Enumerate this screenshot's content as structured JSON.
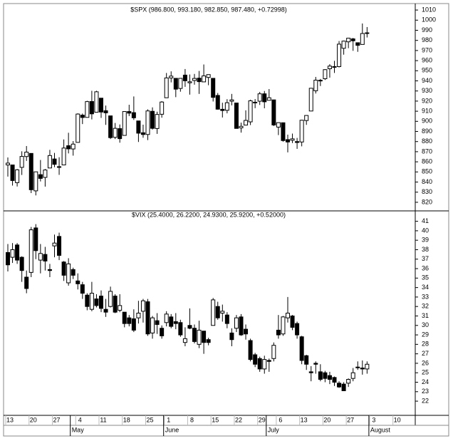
{
  "chart_data": [
    {
      "type": "candlestick",
      "title": "$SPX (986.800, 993.180, 982.850, 987.480, +0.72998)",
      "up_color": "#ffffff",
      "down_color": "#000000",
      "open": [
        856.9,
        856.9,
        839.4,
        854.5,
        865.2,
        868.3,
        831.3,
        847.3,
        844.6,
        853.9,
        862.8,
        854.5,
        856.9,
        875.9,
        872.7,
        879.2,
        906.1,
        903.9,
        919.6,
        909.0,
        922.9,
        910.5,
        905.4,
        884.2,
        892.8,
        886.1,
        909.7,
        908.6,
        900.4,
        888.7,
        887.0,
        909.9,
        892.9,
        907.0,
        923.3,
        942.9,
        942.5,
        932.5,
        945.7,
        938.1,
        940.4,
        942.7,
        939.0,
        943.4,
        942.5,
        925.6,
        911.9,
        910.9,
        919.9,
        918.1,
        893.5,
        896.3,
        899.5,
        918.8,
        919.9,
        927.2,
        920.8,
        921.2,
        894.3,
        898.6,
        881.9,
        881.3,
        880.0,
        879.6,
        900.8,
        910.2,
        930.2,
        940.6,
        942.1,
        952.0,
        953.4,
        954.1,
        972.2,
        978.6,
        981.5,
        977.7,
        976.0,
        986.8,
        null,
        null,
        null,
        null,
        null,
        null,
        null,
        null,
        null,
        null
      ],
      "high": [
        864.3,
        856.9,
        852.9,
        870.4,
        875.6,
        868.3,
        850.1,
        861.8,
        852.9,
        871.8,
        868.8,
        864.5,
        882.1,
        888.7,
        880.5,
        907.9,
        907.7,
        920.3,
        930.2,
        930.2,
        922.9,
        915.6,
        905.4,
        898.4,
        896.9,
        910.0,
        916.4,
        924.6,
        900.4,
        896.7,
        911.8,
        913.8,
        909.5,
        920.0,
        947.8,
        949.4,
        942.5,
        942.5,
        951.7,
        946.3,
        946.9,
        949.8,
        956.2,
        946.3,
        942.5,
        928.0,
        918.4,
        921.9,
        927.1,
        918.1,
        898.7,
        910.9,
        921.4,
        922.0,
        929.1,
        930.0,
        931.9,
        921.2,
        898.9,
        898.6,
        886.8,
        887.9,
        883.6,
        901.5,
        906.0,
        933.0,
        943.9,
        941.9,
        951.6,
        956.5,
        959.8,
        979.4,
        979.8,
        982.5,
        982.4,
        977.8,
        996.7,
        993.2,
        null,
        null,
        null,
        null,
        null,
        null,
        null,
        null,
        null,
        null
      ],
      "low": [
        845.4,
        836.5,
        835.6,
        847.0,
        860.9,
        829.1,
        826.8,
        840.6,
        835.5,
        853.9,
        854.7,
        847.1,
        856.9,
        868.3,
        866.1,
        879.2,
        897.3,
        903.9,
        901.9,
        909.0,
        903.4,
        896.5,
        882.5,
        882.5,
        878.9,
        886.1,
        905.2,
        901.4,
        879.6,
        883.8,
        881.5,
        891.9,
        887.6,
        903.6,
        923.3,
        938.5,
        923.9,
        929.3,
        934.1,
        926.4,
        936.2,
        927.1,
        939.0,
        935.7,
        919.6,
        911.6,
        903.8,
        907.9,
        915.8,
        893.0,
        888.9,
        896.3,
        896.3,
        913.0,
        916.2,
        912.9,
        920.8,
        895.4,
        886.4,
        879.9,
        869.3,
        878.5,
        872.8,
        875.3,
        896.5,
        910.2,
        927.5,
        934.9,
        940.9,
        943.2,
        947.8,
        953.3,
        965.9,
        972.3,
        969.7,
        968.7,
        976.0,
        982.9,
        null,
        null,
        null,
        null,
        null,
        null,
        null,
        null,
        null,
        null
      ],
      "close": [
        858.7,
        841.5,
        852.1,
        865.3,
        869.6,
        832.4,
        850.1,
        843.6,
        851.9,
        866.2,
        857.5,
        855.2,
        873.6,
        872.8,
        877.5,
        907.2,
        903.8,
        919.5,
        907.4,
        929.2,
        909.2,
        908.4,
        883.9,
        893.1,
        882.9,
        909.7,
        908.1,
        903.5,
        888.3,
        887.0,
        910.3,
        893.1,
        906.8,
        919.1,
        942.9,
        944.7,
        931.8,
        942.5,
        940.1,
        939.1,
        942.4,
        939.2,
        944.9,
        946.2,
        923.7,
        912.0,
        910.7,
        918.4,
        921.2,
        893.0,
        895.1,
        900.9,
        920.3,
        918.9,
        927.2,
        919.3,
        923.3,
        896.4,
        898.7,
        881.0,
        879.6,
        882.7,
        879.1,
        901.1,
        905.8,
        932.7,
        940.7,
        940.4,
        951.1,
        954.6,
        954.1,
        976.3,
        979.3,
        982.2,
        979.6,
        975.1,
        986.8,
        987.5,
        null,
        null,
        null,
        null,
        null,
        null,
        null,
        null,
        null,
        null
      ],
      "ylim": [
        811.5,
        1016.4
      ],
      "yticks": [
        820,
        830,
        840,
        850,
        860,
        870,
        880,
        890,
        900,
        910,
        920,
        930,
        940,
        950,
        960,
        970,
        980,
        990,
        1000,
        1010
      ]
    },
    {
      "type": "candlestick",
      "title": "$VIX (25.4000, 26.2200, 24.9300, 25.9200, +0.52000)",
      "up_color": "#ffffff",
      "down_color": "#000000",
      "categories": [
        "13",
        null,
        null,
        null,
        null,
        "20",
        null,
        null,
        null,
        null,
        "27",
        null,
        null,
        null,
        null,
        "4",
        null,
        null,
        null,
        null,
        "11",
        null,
        null,
        null,
        null,
        "18",
        null,
        null,
        null,
        null,
        "25",
        null,
        null,
        null,
        "1",
        null,
        null,
        null,
        null,
        "8",
        null,
        null,
        null,
        null,
        "15",
        null,
        null,
        null,
        null,
        "22",
        null,
        null,
        null,
        null,
        "29",
        null,
        null,
        null,
        "6",
        null,
        null,
        null,
        null,
        "13",
        null,
        null,
        null,
        null,
        "20",
        null,
        null,
        null,
        null,
        "27",
        null,
        null,
        null,
        null,
        "3",
        null,
        null,
        null,
        null,
        "10",
        null,
        null,
        null,
        null
      ],
      "months": [
        null,
        null,
        null,
        null,
        null,
        null,
        null,
        null,
        null,
        null,
        null,
        null,
        null,
        null,
        "May",
        null,
        null,
        null,
        null,
        null,
        null,
        null,
        null,
        null,
        null,
        null,
        null,
        null,
        null,
        null,
        null,
        null,
        null,
        null,
        "June",
        null,
        null,
        null,
        null,
        null,
        null,
        null,
        null,
        null,
        null,
        null,
        null,
        null,
        null,
        null,
        null,
        null,
        null,
        null,
        null,
        null,
        "July",
        null,
        null,
        null,
        null,
        null,
        null,
        null,
        null,
        null,
        null,
        null,
        null,
        null,
        null,
        null,
        null,
        null,
        null,
        null,
        null,
        null,
        "August",
        null,
        null,
        null,
        null,
        null,
        null,
        null,
        null,
        null
      ],
      "open": [
        37.7,
        37.2,
        38.5,
        37.2,
        35.1,
        35.6,
        40.3,
        36.9,
        37.5,
        35.9,
        38.4,
        39.4,
        36.7,
        34.5,
        35.9,
        34.7,
        34.3,
        33.2,
        31.7,
        32.8,
        33.1,
        31.7,
        32.0,
        33.1,
        31.6,
        31.4,
        30.8,
        30.7,
        30.8,
        31.5,
        32.5,
        29.2,
        30.5,
        29.7,
        30.3,
        30.9,
        30.4,
        30.3,
        28.2,
        30.0,
        29.7,
        28.0,
        29.4,
        28.5,
        30.0,
        32.0,
        31.3,
        31.1,
        29.2,
        29.7,
        30.9,
        29.6,
        28.4,
        26.9,
        26.5,
        25.4,
        26.3,
        26.5,
        29.5,
        29.1,
        30.8,
        31.0,
        30.2,
        28.8,
        26.8,
        25.1,
        26.0,
        25.1,
        25.0,
        24.7,
        24.5,
        23.9,
        23.8,
        23.9,
        24.4,
        25.6,
        25.5,
        25.4,
        null,
        null,
        null,
        null,
        null,
        null,
        null,
        null,
        null,
        null
      ],
      "high": [
        38.6,
        38.7,
        38.7,
        37.3,
        35.8,
        40.4,
        40.7,
        38.6,
        38.3,
        36.5,
        39.6,
        39.8,
        36.8,
        37.1,
        36.1,
        35.5,
        34.6,
        33.4,
        34.6,
        33.3,
        33.7,
        32.8,
        34.1,
        33.3,
        33.3,
        31.4,
        31.1,
        31.7,
        32.6,
        32.8,
        32.8,
        31.0,
        31.3,
        30.0,
        31.5,
        31.2,
        31.3,
        30.6,
        29.8,
        31.8,
        30.1,
        30.5,
        29.4,
        28.7,
        32.9,
        32.5,
        32.2,
        31.4,
        29.7,
        31.1,
        31.2,
        30.1,
        28.6,
        27.1,
        26.7,
        26.8,
        26.5,
        28.2,
        31.1,
        31.0,
        33.0,
        31.1,
        30.4,
        28.9,
        26.9,
        25.7,
        26.2,
        25.9,
        25.2,
        25.1,
        24.6,
        24.1,
        24.0,
        24.4,
        25.5,
        26.2,
        26.3,
        26.2,
        null,
        null,
        null,
        null,
        null,
        null,
        null,
        null,
        null,
        null
      ],
      "low": [
        35.7,
        36.6,
        36.5,
        34.6,
        33.4,
        35.1,
        37.0,
        35.5,
        35.8,
        35.1,
        37.2,
        36.9,
        34.7,
        34.2,
        34.9,
        33.8,
        32.8,
        31.6,
        31.5,
        31.9,
        31.4,
        30.9,
        31.9,
        31.3,
        31.4,
        29.8,
        29.9,
        29.3,
        30.2,
        30.3,
        28.9,
        28.6,
        29.1,
        28.6,
        29.9,
        29.7,
        29.6,
        28.8,
        27.8,
        29.6,
        28.1,
        27.6,
        27.0,
        27.9,
        30.0,
        30.6,
        30.4,
        29.7,
        27.8,
        29.3,
        28.9,
        28.5,
        26.2,
        25.6,
        25.1,
        24.9,
        25.1,
        26.2,
        28.6,
        28.9,
        30.3,
        29.5,
        28.6,
        25.9,
        25.3,
        24.1,
        24.9,
        24.1,
        24.0,
        23.8,
        23.6,
        23.4,
        23.1,
        23.5,
        24.1,
        25.3,
        24.8,
        24.9,
        null,
        null,
        null,
        null,
        null,
        null,
        null,
        null,
        null,
        null
      ],
      "close": [
        36.4,
        38.0,
        36.9,
        35.8,
        33.9,
        40.1,
        37.9,
        37.6,
        36.8,
        35.8,
        38.7,
        37.4,
        35.3,
        36.5,
        35.3,
        34.4,
        33.4,
        32.0,
        33.4,
        32.1,
        31.8,
        31.4,
        33.6,
        31.4,
        32.1,
        30.2,
        30.2,
        29.5,
        31.3,
        32.6,
        29.1,
        30.8,
        30.1,
        28.9,
        31.2,
        29.9,
        30.2,
        29.0,
        28.6,
        29.7,
        28.3,
        29.5,
        28.2,
        28.2,
        32.7,
        30.8,
        31.5,
        30.2,
        28.5,
        30.8,
        29.0,
        29.1,
        26.4,
        25.9,
        25.4,
        26.4,
        26.2,
        27.9,
        29.0,
        30.9,
        31.3,
        29.8,
        29.0,
        26.3,
        25.9,
        25.0,
        25.9,
        24.3,
        24.4,
        24.3,
        24.0,
        23.5,
        23.1,
        24.3,
        25.0,
        25.6,
        25.4,
        25.9,
        null,
        null,
        null,
        null,
        null,
        null,
        null,
        null,
        null,
        null
      ],
      "ylim": [
        20.5,
        42.1
      ],
      "yticks": [
        22,
        23,
        24,
        25,
        26,
        27,
        28,
        29,
        30,
        31,
        32,
        33,
        34,
        35,
        36,
        37,
        38,
        39,
        40,
        41
      ]
    }
  ]
}
